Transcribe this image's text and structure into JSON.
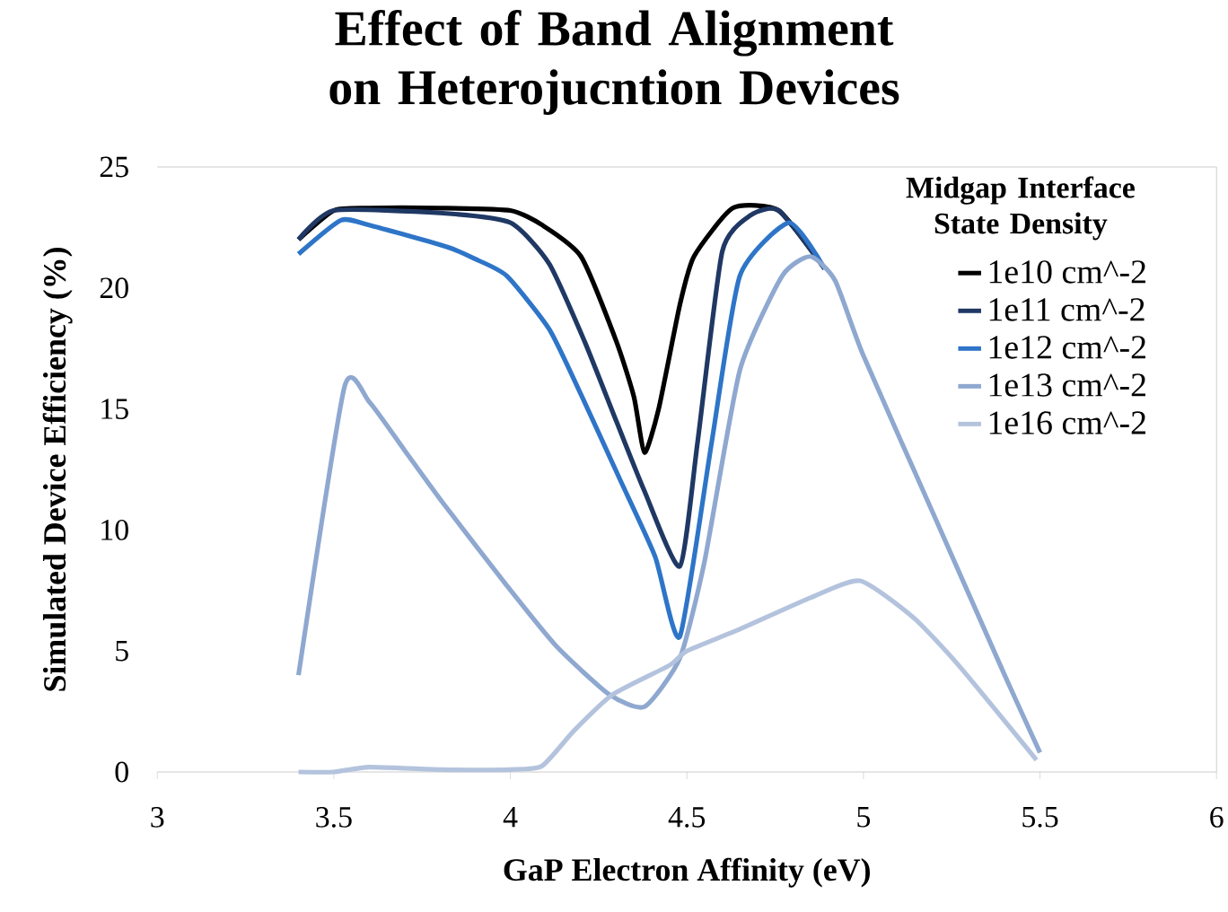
{
  "chart_data": {
    "type": "line",
    "title": "Effect of Band Alignment on Heterojucntion Devices",
    "xlabel": "GaP Electron Affinity (eV)",
    "ylabel": "Simulated Device Efficiency (%)",
    "legend_title": "Midgap Interface State Density",
    "xlim": [
      3,
      6
    ],
    "xticks": [
      3,
      3.5,
      4,
      4.5,
      5,
      5.5,
      6
    ],
    "ylim": [
      0,
      25
    ],
    "yticks": [
      0,
      5,
      10,
      15,
      20,
      25
    ],
    "grid": false,
    "legend": "top right",
    "marker": "none",
    "line_style": "solid",
    "series": [
      {
        "name": "1e10 cm^-2",
        "color": "#000000",
        "x": [
          3.4,
          3.5,
          3.6,
          3.8,
          4.0,
          4.09,
          4.2,
          4.3,
          4.35,
          4.38,
          4.42,
          4.48,
          4.52,
          4.63,
          4.76,
          4.89
        ],
        "values": [
          22.0,
          23.2,
          23.3,
          23.3,
          23.2,
          22.6,
          21.3,
          17.8,
          15.5,
          13.2,
          15.0,
          19.3,
          21.3,
          23.3,
          23.2,
          20.8
        ]
      },
      {
        "name": "1e11 cm^-2",
        "color": "#1f3864",
        "x": [
          3.4,
          3.5,
          3.8,
          4.0,
          4.11,
          4.21,
          4.3,
          4.38,
          4.48,
          4.53,
          4.6,
          4.68,
          4.76,
          4.89
        ],
        "values": [
          22.0,
          23.2,
          23.1,
          22.7,
          21.0,
          17.8,
          14.5,
          11.6,
          8.5,
          13.6,
          21.5,
          23.0,
          23.2,
          20.8
        ]
      },
      {
        "name": "1e12 cm^-2",
        "color": "#2e75c8",
        "x": [
          3.4,
          3.52,
          3.6,
          3.82,
          3.9,
          3.99,
          4.11,
          4.2,
          4.31,
          4.41,
          4.48,
          4.57,
          4.65,
          4.79,
          4.89
        ],
        "values": [
          21.4,
          22.8,
          22.6,
          21.7,
          21.2,
          20.5,
          18.3,
          15.6,
          12.1,
          8.9,
          5.6,
          13.6,
          20.5,
          22.7,
          20.8
        ]
      },
      {
        "name": "1e13 cm^-2",
        "color": "#8fa8d0",
        "x": [
          3.4,
          3.53,
          3.6,
          3.7,
          3.81,
          3.99,
          4.13,
          4.28,
          4.38,
          4.48,
          4.55,
          4.65,
          4.77,
          4.85,
          4.92,
          5.0,
          5.2,
          5.4,
          5.5
        ],
        "values": [
          4.0,
          15.9,
          15.3,
          13.3,
          11.1,
          7.7,
          5.2,
          3.2,
          2.7,
          4.7,
          8.7,
          16.6,
          20.5,
          21.3,
          20.3,
          17.2,
          10.6,
          4.0,
          0.8
        ]
      },
      {
        "name": "1e16 cm^-2",
        "color": "#b4c3dd",
        "x": [
          3.4,
          3.5,
          3.6,
          3.8,
          4.0,
          4.09,
          4.18,
          4.29,
          4.45,
          4.5,
          4.65,
          4.85,
          4.99,
          5.14,
          5.27,
          5.49
        ],
        "values": [
          0.0,
          0.0,
          0.2,
          0.1,
          0.1,
          0.25,
          1.7,
          3.2,
          4.4,
          5.0,
          5.9,
          7.2,
          7.9,
          6.4,
          4.4,
          0.5
        ]
      }
    ]
  }
}
